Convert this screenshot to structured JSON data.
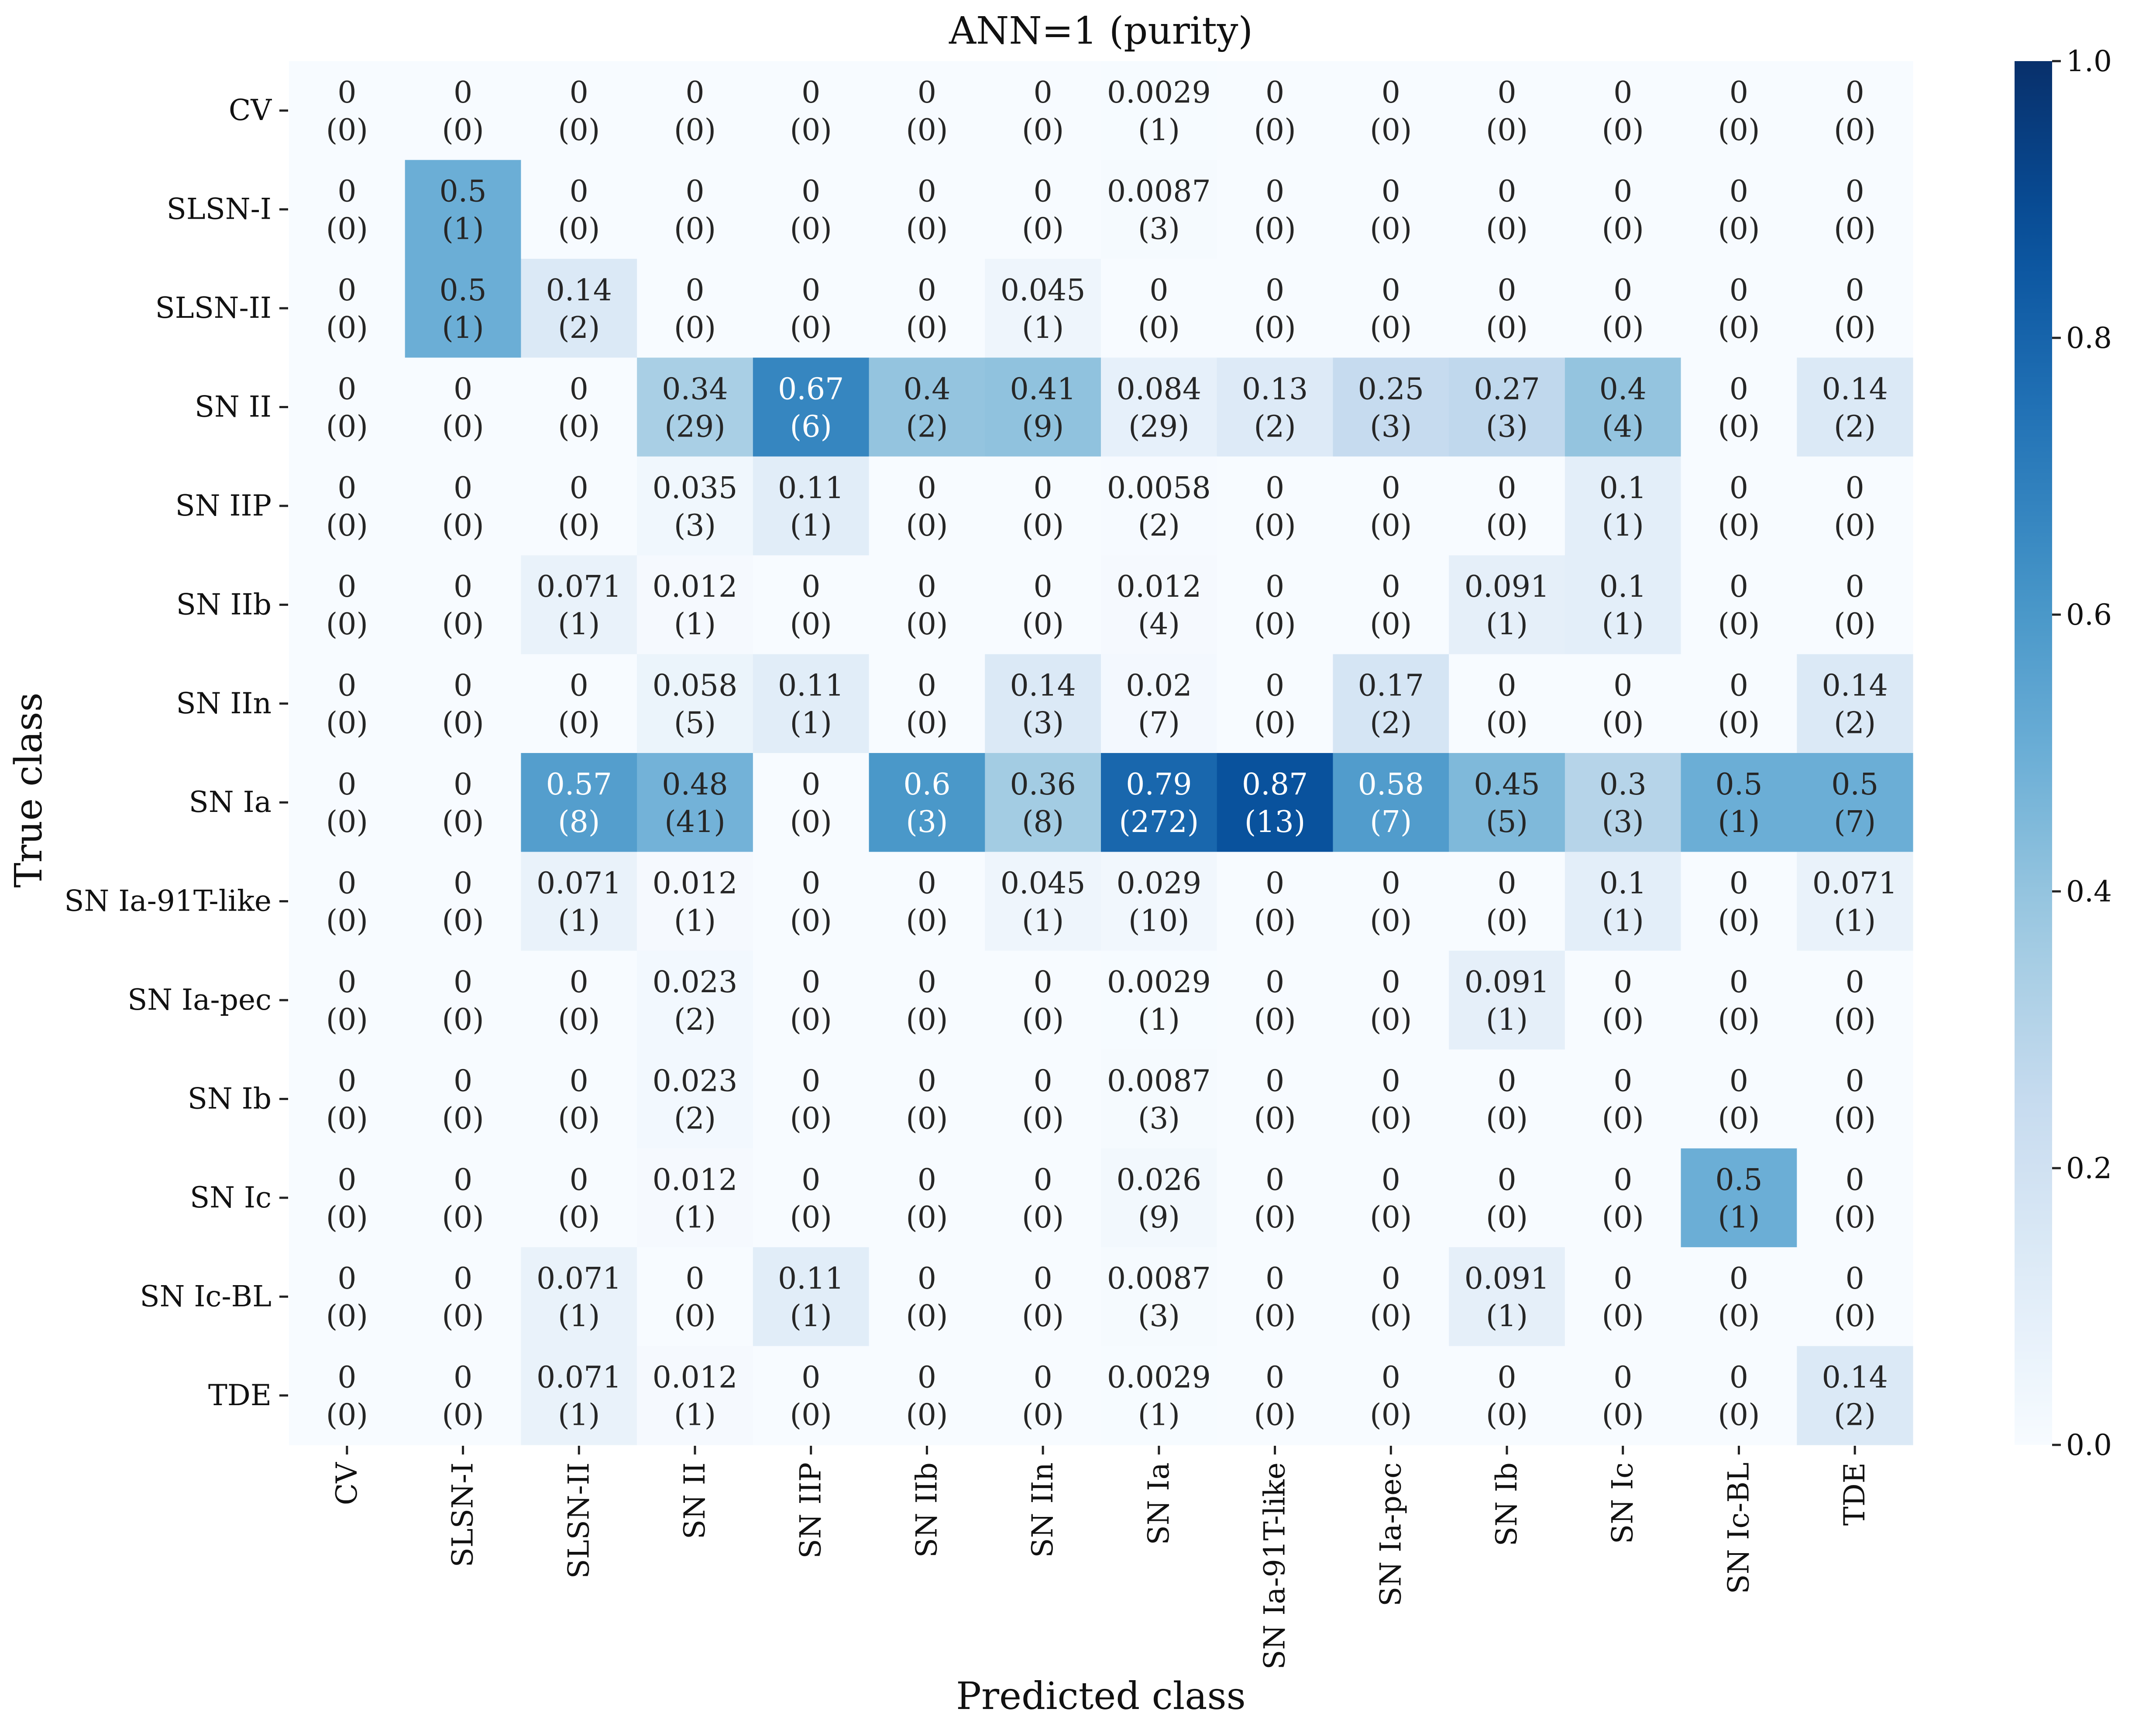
{
  "chart_data": {
    "type": "heatmap",
    "title": "ANN=1 (purity)",
    "xlabel": "Predicted class",
    "ylabel": "True class",
    "categories_x": [
      "CV",
      "SLSN-I",
      "SLSN-II",
      "SN II",
      "SN IIP",
      "SN IIb",
      "SN IIn",
      "SN Ia",
      "SN Ia-91T-like",
      "SN Ia-pec",
      "SN Ib",
      "SN Ic",
      "SN Ic-BL",
      "TDE"
    ],
    "categories_y": [
      "CV",
      "SLSN-I",
      "SLSN-II",
      "SN II",
      "SN IIP",
      "SN IIb",
      "SN IIn",
      "SN Ia",
      "SN Ia-91T-like",
      "SN Ia-pec",
      "SN Ib",
      "SN Ic",
      "SN Ic-BL",
      "TDE"
    ],
    "value_labels": [
      [
        "0",
        "0",
        "0",
        "0",
        "0",
        "0",
        "0",
        "0.0029",
        "0",
        "0",
        "0",
        "0",
        "0",
        "0"
      ],
      [
        "0",
        "0.5",
        "0",
        "0",
        "0",
        "0",
        "0",
        "0.0087",
        "0",
        "0",
        "0",
        "0",
        "0",
        "0"
      ],
      [
        "0",
        "0.5",
        "0.14",
        "0",
        "0",
        "0",
        "0.045",
        "0",
        "0",
        "0",
        "0",
        "0",
        "0",
        "0"
      ],
      [
        "0",
        "0",
        "0",
        "0.34",
        "0.67",
        "0.4",
        "0.41",
        "0.084",
        "0.13",
        "0.25",
        "0.27",
        "0.4",
        "0",
        "0.14"
      ],
      [
        "0",
        "0",
        "0",
        "0.035",
        "0.11",
        "0",
        "0",
        "0.0058",
        "0",
        "0",
        "0",
        "0.1",
        "0",
        "0"
      ],
      [
        "0",
        "0",
        "0.071",
        "0.012",
        "0",
        "0",
        "0",
        "0.012",
        "0",
        "0",
        "0.091",
        "0.1",
        "0",
        "0"
      ],
      [
        "0",
        "0",
        "0",
        "0.058",
        "0.11",
        "0",
        "0.14",
        "0.02",
        "0",
        "0.17",
        "0",
        "0",
        "0",
        "0.14"
      ],
      [
        "0",
        "0",
        "0.57",
        "0.48",
        "0",
        "0.6",
        "0.36",
        "0.79",
        "0.87",
        "0.58",
        "0.45",
        "0.3",
        "0.5",
        "0.5"
      ],
      [
        "0",
        "0",
        "0.071",
        "0.012",
        "0",
        "0",
        "0.045",
        "0.029",
        "0",
        "0",
        "0",
        "0.1",
        "0",
        "0.071"
      ],
      [
        "0",
        "0",
        "0",
        "0.023",
        "0",
        "0",
        "0",
        "0.0029",
        "0",
        "0",
        "0.091",
        "0",
        "0",
        "0"
      ],
      [
        "0",
        "0",
        "0",
        "0.023",
        "0",
        "0",
        "0",
        "0.0087",
        "0",
        "0",
        "0",
        "0",
        "0",
        "0"
      ],
      [
        "0",
        "0",
        "0",
        "0.012",
        "0",
        "0",
        "0",
        "0.026",
        "0",
        "0",
        "0",
        "0",
        "0.5",
        "0"
      ],
      [
        "0",
        "0",
        "0.071",
        "0",
        "0.11",
        "0",
        "0",
        "0.0087",
        "0",
        "0",
        "0.091",
        "0",
        "0",
        "0"
      ],
      [
        "0",
        "0",
        "0.071",
        "0.012",
        "0",
        "0",
        "0",
        "0.0029",
        "0",
        "0",
        "0",
        "0",
        "0",
        "0.14"
      ]
    ],
    "counts": [
      [
        0,
        0,
        0,
        0,
        0,
        0,
        0,
        1,
        0,
        0,
        0,
        0,
        0,
        0
      ],
      [
        0,
        1,
        0,
        0,
        0,
        0,
        0,
        3,
        0,
        0,
        0,
        0,
        0,
        0
      ],
      [
        0,
        1,
        2,
        0,
        0,
        0,
        1,
        0,
        0,
        0,
        0,
        0,
        0,
        0
      ],
      [
        0,
        0,
        0,
        29,
        6,
        2,
        9,
        29,
        2,
        3,
        3,
        4,
        0,
        2
      ],
      [
        0,
        0,
        0,
        3,
        1,
        0,
        0,
        2,
        0,
        0,
        0,
        1,
        0,
        0
      ],
      [
        0,
        0,
        1,
        1,
        0,
        0,
        0,
        4,
        0,
        0,
        1,
        1,
        0,
        0
      ],
      [
        0,
        0,
        0,
        5,
        1,
        0,
        3,
        7,
        0,
        2,
        0,
        0,
        0,
        2
      ],
      [
        0,
        0,
        8,
        41,
        0,
        3,
        8,
        272,
        13,
        7,
        5,
        3,
        1,
        7
      ],
      [
        0,
        0,
        1,
        1,
        0,
        0,
        1,
        10,
        0,
        0,
        0,
        1,
        0,
        1
      ],
      [
        0,
        0,
        0,
        2,
        0,
        0,
        0,
        1,
        0,
        0,
        1,
        0,
        0,
        0
      ],
      [
        0,
        0,
        0,
        2,
        0,
        0,
        0,
        3,
        0,
        0,
        0,
        0,
        0,
        0
      ],
      [
        0,
        0,
        0,
        1,
        0,
        0,
        0,
        9,
        0,
        0,
        0,
        0,
        1,
        0
      ],
      [
        0,
        0,
        1,
        0,
        1,
        0,
        0,
        3,
        0,
        0,
        1,
        0,
        0,
        0
      ],
      [
        0,
        0,
        1,
        1,
        0,
        0,
        0,
        1,
        0,
        0,
        0,
        0,
        0,
        2
      ]
    ],
    "colorbar": {
      "range": [
        0.0,
        1.0
      ],
      "ticks": [
        "0.0",
        "0.2",
        "0.4",
        "0.6",
        "0.8",
        "1.0"
      ],
      "colormap": "Blues",
      "color_low": "#f7fbff",
      "color_high": "#08306b"
    },
    "grid": false
  }
}
